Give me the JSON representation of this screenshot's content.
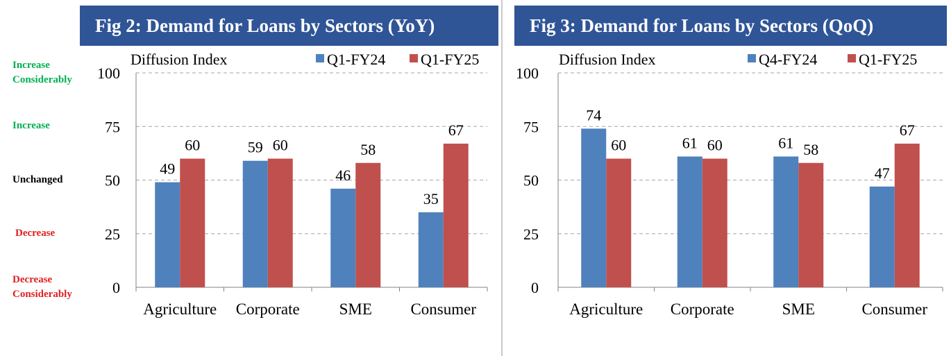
{
  "colors": {
    "series1": "#4f81bd",
    "series2": "#c0504d",
    "title_bg": "#2f5597",
    "grid": "#a6a6a6"
  },
  "band_labels": [
    {
      "lines": [
        "Increase",
        "Considerably"
      ],
      "color": "green",
      "value": 100
    },
    {
      "lines": [
        "Increase"
      ],
      "color": "green",
      "value": 75
    },
    {
      "lines": [
        "Unchanged"
      ],
      "color": "black",
      "value": 50
    },
    {
      "lines": [
        "Decrease"
      ],
      "color": "red",
      "value": 25
    },
    {
      "lines": [
        "Decrease",
        "Considerably"
      ],
      "color": "red",
      "value": 0
    }
  ],
  "chart_data": [
    {
      "type": "bar",
      "title": "Fig 2: Demand for Loans by Sectors (YoY)",
      "ylabel": "Diffusion Index",
      "categories": [
        "Agriculture",
        "Corporate",
        "SME",
        "Consumer"
      ],
      "series": [
        {
          "name": "Q1-FY24",
          "values": [
            49,
            59,
            46,
            35
          ]
        },
        {
          "name": "Q1-FY25",
          "values": [
            60,
            60,
            58,
            67
          ]
        }
      ],
      "ylim": [
        0,
        100
      ],
      "yticks": [
        0,
        25,
        50,
        75,
        100
      ],
      "grid": true,
      "legend": "top-right"
    },
    {
      "type": "bar",
      "title": "Fig 3: Demand for Loans by Sectors (QoQ)",
      "ylabel": "Diffusion Index",
      "categories": [
        "Agriculture",
        "Corporate",
        "SME",
        "Consumer"
      ],
      "series": [
        {
          "name": "Q4-FY24",
          "values": [
            74,
            61,
            61,
            47
          ]
        },
        {
          "name": "Q1-FY25",
          "values": [
            60,
            60,
            58,
            67
          ]
        }
      ],
      "ylim": [
        0,
        100
      ],
      "yticks": [
        0,
        25,
        50,
        75,
        100
      ],
      "grid": true,
      "legend": "top-right"
    }
  ]
}
